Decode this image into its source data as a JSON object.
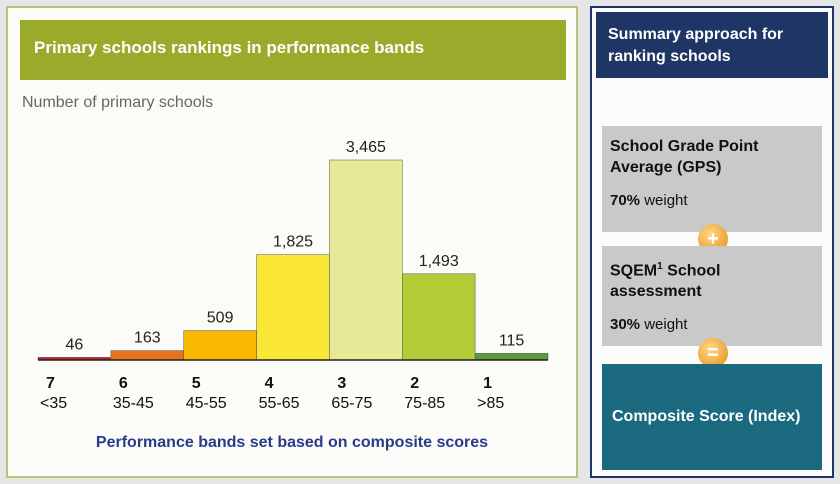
{
  "chart_data": {
    "type": "bar",
    "title": "Primary schools rankings in performance bands",
    "subtitle": "Number of primary schools",
    "categories": [
      "7",
      "6",
      "5",
      "4",
      "3",
      "2",
      "1"
    ],
    "category_ranges": [
      "<35",
      "35-45",
      "45-55",
      "55-65",
      "65-75",
      "75-85",
      ">85"
    ],
    "values": [
      46,
      163,
      509,
      1825,
      3465,
      1493,
      115
    ],
    "value_labels": [
      "46",
      "163",
      "509",
      "1,825",
      "3,465",
      "1,493",
      "115"
    ],
    "colors": [
      "#c8202a",
      "#e8731e",
      "#f9b800",
      "#f9e635",
      "#e6ea96",
      "#b2cb36",
      "#5a9a3a"
    ],
    "footnote": "Performance bands set based on composite scores"
  },
  "summary": {
    "title": "Summary approach for ranking schools",
    "items": [
      {
        "label": "School Grade Point Average (GPS)",
        "weight": "70%",
        "weight_text": "weight"
      },
      {
        "label": "SQEM",
        "label_sup": "1",
        "label_rest": "School assessment",
        "weight": "30%",
        "weight_text": "weight"
      }
    ],
    "operators": [
      "+",
      "="
    ],
    "result": "Composite Score (Index)"
  }
}
